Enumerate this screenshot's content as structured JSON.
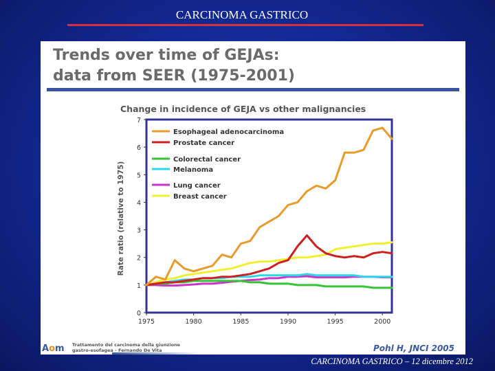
{
  "slide": {
    "title": "CARCINOMA GASTRICO",
    "footer": "CARCINOMA GASTRICO – 12 dicembre 2012"
  },
  "panel": {
    "heading_line1": "Trends over time of GEJAs:",
    "heading_line2": "data from SEER (1975-2001)",
    "logo_text": "Aom",
    "logo_letter_a": "A",
    "logo_letter_o": "o",
    "logo_letter_m": "m",
    "footer_note_line1": "Trattamento del carcinoma della giunzione",
    "footer_note_line2": "gastro-esofagea - Fernando De Vita",
    "citation": "Pohl H, JNCI  2005"
  },
  "colors": {
    "esophageal": "#e89a2a",
    "prostate": "#d01e1e",
    "colorectal": "#35c435",
    "melanoma": "#28d8e8",
    "lung": "#cc33cc",
    "breast": "#f0f030",
    "frame": "#333399"
  },
  "chart_data": {
    "type": "line",
    "title": "Change in incidence of GEJA vs other malignancies",
    "xlabel": "",
    "ylabel": "Rate ratio (relative to 1975)",
    "xlim": [
      1975,
      2001
    ],
    "ylim": [
      0,
      7
    ],
    "xticks": [
      1975,
      1980,
      1985,
      1990,
      1995,
      2000
    ],
    "yticks": [
      0,
      1,
      2,
      3,
      4,
      5,
      6,
      7
    ],
    "x": [
      1975,
      1976,
      1977,
      1978,
      1979,
      1980,
      1981,
      1982,
      1983,
      1984,
      1985,
      1986,
      1987,
      1988,
      1989,
      1990,
      1991,
      1992,
      1993,
      1994,
      1995,
      1996,
      1997,
      1998,
      1999,
      2000,
      2001
    ],
    "series": [
      {
        "key": "esophageal",
        "name": "Esophageal  adenocarcinoma",
        "values": [
          1.0,
          1.3,
          1.2,
          1.9,
          1.6,
          1.5,
          1.6,
          1.7,
          2.1,
          2.0,
          2.5,
          2.6,
          3.1,
          3.3,
          3.5,
          3.9,
          4.0,
          4.4,
          4.6,
          4.5,
          4.8,
          5.8,
          5.8,
          5.9,
          6.6,
          6.7,
          6.3
        ]
      },
      {
        "key": "prostate",
        "name": "Prostate cancer",
        "values": [
          1.0,
          1.05,
          1.1,
          1.1,
          1.15,
          1.2,
          1.25,
          1.25,
          1.3,
          1.3,
          1.35,
          1.4,
          1.5,
          1.6,
          1.8,
          1.9,
          2.4,
          2.8,
          2.4,
          2.15,
          2.05,
          2.0,
          2.05,
          2.0,
          2.15,
          2.2,
          2.15
        ]
      },
      {
        "key": "colorectal",
        "name": "Colorectal  cancer",
        "values": [
          1.0,
          1.05,
          1.05,
          1.1,
          1.1,
          1.15,
          1.15,
          1.15,
          1.15,
          1.15,
          1.15,
          1.1,
          1.1,
          1.05,
          1.05,
          1.05,
          1.0,
          1.0,
          1.0,
          0.95,
          0.95,
          0.95,
          0.95,
          0.95,
          0.9,
          0.9,
          0.9
        ]
      },
      {
        "key": "melanoma",
        "name": "Melanoma",
        "values": [
          1.0,
          1.05,
          1.1,
          1.15,
          1.2,
          1.2,
          1.25,
          1.25,
          1.25,
          1.3,
          1.3,
          1.3,
          1.35,
          1.35,
          1.35,
          1.35,
          1.35,
          1.4,
          1.35,
          1.35,
          1.35,
          1.35,
          1.35,
          1.3,
          1.3,
          1.3,
          1.3
        ]
      },
      {
        "key": "lung",
        "name": "Lung cancer",
        "values": [
          1.0,
          1.0,
          0.98,
          0.98,
          1.0,
          1.02,
          1.05,
          1.05,
          1.08,
          1.12,
          1.15,
          1.18,
          1.2,
          1.25,
          1.25,
          1.3,
          1.3,
          1.32,
          1.28,
          1.28,
          1.28,
          1.28,
          1.3,
          1.3,
          1.3,
          1.28,
          1.28
        ]
      },
      {
        "key": "breast",
        "name": "Breast cancer",
        "values": [
          1.0,
          1.1,
          1.2,
          1.25,
          1.35,
          1.4,
          1.45,
          1.5,
          1.55,
          1.6,
          1.7,
          1.8,
          1.85,
          1.85,
          1.9,
          1.95,
          2.0,
          2.0,
          2.05,
          2.1,
          2.3,
          2.35,
          2.4,
          2.45,
          2.5,
          2.5,
          2.55
        ]
      }
    ]
  }
}
